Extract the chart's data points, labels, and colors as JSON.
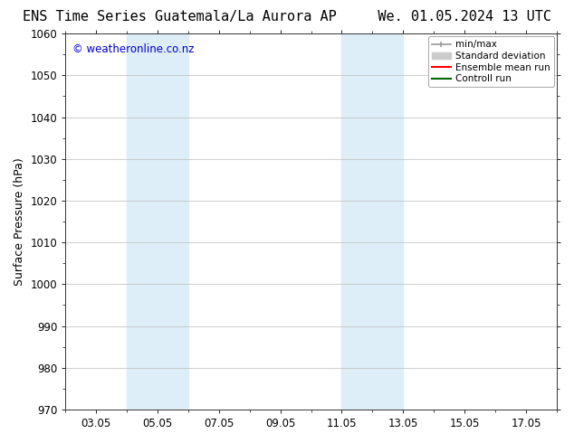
{
  "title_left": "ENS Time Series Guatemala/La Aurora AP",
  "title_right": "We. 01.05.2024 13 UTC",
  "ylabel": "Surface Pressure (hPa)",
  "ylim": [
    970,
    1060
  ],
  "yticks": [
    970,
    980,
    990,
    1000,
    1010,
    1020,
    1030,
    1040,
    1050,
    1060
  ],
  "xlim": [
    2.0,
    18.0
  ],
  "xtick_labels": [
    "03.05",
    "05.05",
    "07.05",
    "09.05",
    "11.05",
    "13.05",
    "15.05",
    "17.05"
  ],
  "xtick_positions": [
    3,
    5,
    7,
    9,
    11,
    13,
    15,
    17
  ],
  "shaded_regions": [
    {
      "x_start": 4.0,
      "x_end": 6.0,
      "color": "#ddeef8"
    },
    {
      "x_start": 11.0,
      "x_end": 13.0,
      "color": "#ddeef8"
    }
  ],
  "watermark_text": "© weatheronline.co.nz",
  "watermark_color": "#0000cc",
  "background_color": "#ffffff",
  "plot_bg_color": "#ffffff",
  "grid_color": "#bbbbbb",
  "legend_entries": [
    {
      "label": "min/max",
      "color": "#999999",
      "lw": 1.2
    },
    {
      "label": "Standard deviation",
      "color": "#cccccc",
      "lw": 8
    },
    {
      "label": "Ensemble mean run",
      "color": "#ff0000",
      "lw": 1.5
    },
    {
      "label": "Controll run",
      "color": "#006600",
      "lw": 1.5
    }
  ],
  "title_fontsize": 11,
  "tick_fontsize": 8.5,
  "ylabel_fontsize": 9,
  "watermark_fontsize": 8.5
}
